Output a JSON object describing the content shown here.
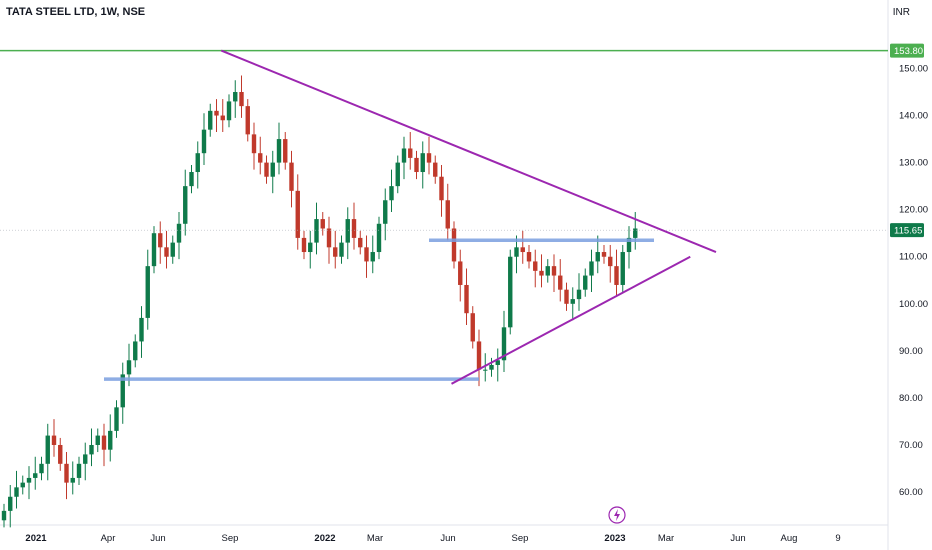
{
  "header": {
    "symbol_title": "TATA STEEL LTD, 1W, NSE",
    "currency": "INR"
  },
  "price_labels": {
    "resistance": "153.80",
    "last": "115.65"
  },
  "colors": {
    "up": "#26a69a",
    "up_dark": "#0f7a4a",
    "down": "#ef5350",
    "down_dark": "#c0392b",
    "resistance_line": "#4caf50",
    "triangle": "#9c27b0",
    "support": "#7b9fe0",
    "last_price": "#0f7a4a"
  },
  "icons": {
    "event_marker": "lightning-icon"
  },
  "chart_data": {
    "type": "candlestick",
    "interval": "1W",
    "xlabels": [
      "2021",
      "Apr",
      "Jun",
      "Sep",
      "2022",
      "Mar",
      "Jun",
      "Sep",
      "2023",
      "Mar",
      "Jun",
      "Aug",
      "9"
    ],
    "ylabels": [
      "150.00",
      "140.00",
      "130.00",
      "120.00",
      "110.00",
      "100.00",
      "90.00",
      "80.00",
      "70.00",
      "60.00"
    ],
    "ylim": [
      53,
      162
    ],
    "grid": false,
    "closes": [
      56,
      59,
      61,
      62,
      63,
      64,
      66,
      72,
      70,
      66,
      62,
      63,
      66,
      68,
      70,
      72,
      69,
      73,
      78,
      85,
      88,
      92,
      97,
      108,
      115,
      112,
      110,
      113,
      117,
      125,
      128,
      132,
      137,
      141,
      140,
      139,
      143,
      145,
      142,
      136,
      132,
      130,
      127,
      130,
      135,
      130,
      124,
      114,
      111,
      113,
      118,
      116,
      112,
      110,
      113,
      118,
      114,
      112,
      109,
      111,
      117,
      122,
      125,
      130,
      133,
      131,
      128,
      132,
      130,
      127,
      122,
      116,
      109,
      104,
      98,
      92,
      86,
      86,
      87,
      88,
      95,
      110,
      112,
      111,
      109,
      107,
      106,
      108,
      106,
      103,
      100,
      101,
      103,
      106,
      109,
      111,
      110,
      108,
      104,
      111,
      114,
      116
    ],
    "annotations": {
      "resistance_level": 153.8,
      "last_price": 115.65,
      "support_levels": [
        84,
        113.5
      ],
      "triangle": {
        "upper": [
          [
            37,
            153.8
          ],
          [
            120,
            111
          ]
        ],
        "lower": [
          [
            78,
            83
          ],
          [
            117,
            110
          ]
        ]
      }
    }
  }
}
